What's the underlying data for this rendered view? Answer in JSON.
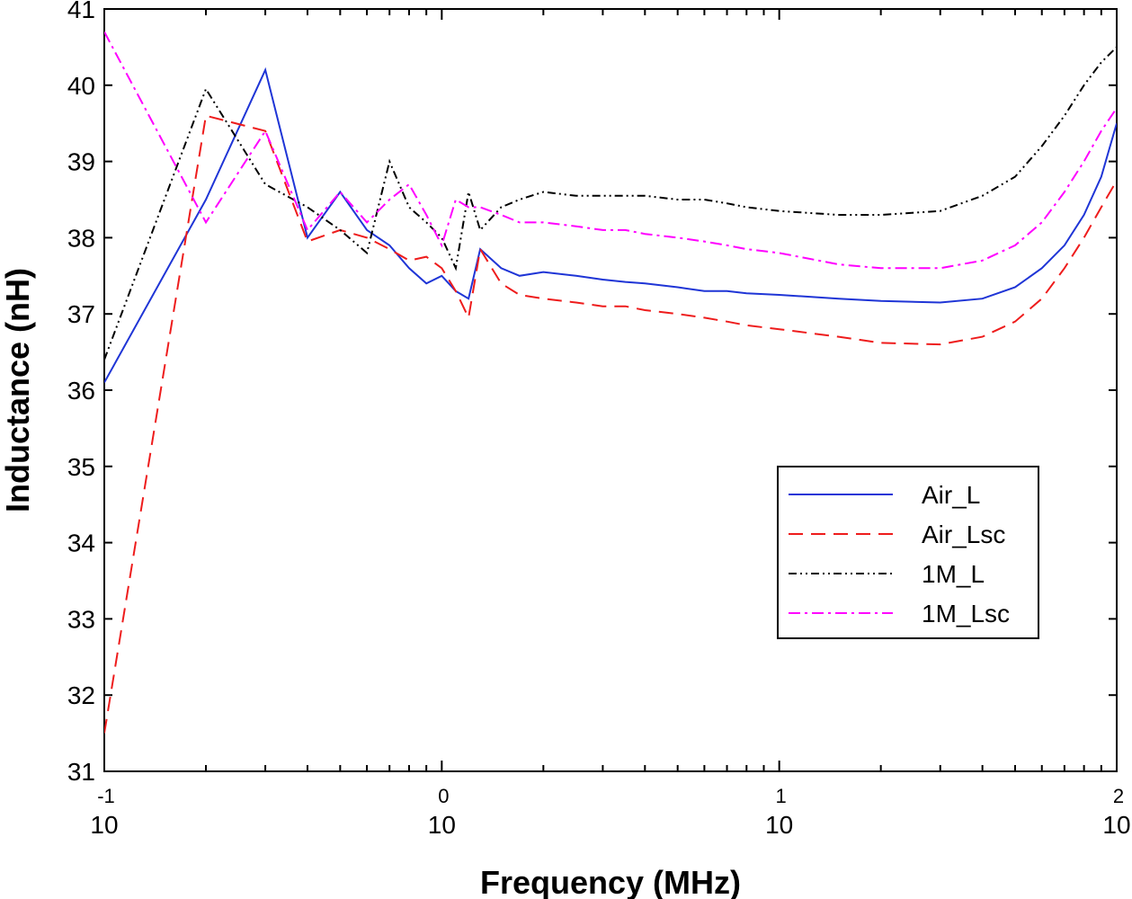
{
  "chart_data": {
    "type": "line",
    "title": "",
    "xlabel": "Frequency (MHz)",
    "ylabel": "Inductance (nH)",
    "xscale": "log",
    "xlim": [
      0.1,
      100
    ],
    "ylim": [
      31,
      41
    ],
    "x_ticks": [
      {
        "base": "10",
        "exp": "-1"
      },
      {
        "base": "10",
        "exp": "0"
      },
      {
        "base": "10",
        "exp": "1"
      },
      {
        "base": "10",
        "exp": "2"
      }
    ],
    "y_ticks": [
      "31",
      "32",
      "33",
      "34",
      "35",
      "36",
      "37",
      "38",
      "39",
      "40",
      "41"
    ],
    "legend_position": "right",
    "series": [
      {
        "name": "Air_L",
        "color": "#1f35d6",
        "dash": "solid",
        "x": [
          0.1,
          0.2,
          0.3,
          0.4,
          0.5,
          0.6,
          0.7,
          0.8,
          0.9,
          1,
          1.1,
          1.2,
          1.3,
          1.5,
          1.7,
          2,
          2.5,
          3,
          3.5,
          4,
          5,
          6,
          7,
          8,
          10,
          15,
          20,
          30,
          40,
          50,
          60,
          70,
          80,
          90,
          100
        ],
        "y": [
          36.1,
          38.5,
          40.2,
          38.0,
          38.6,
          38.1,
          37.9,
          37.6,
          37.4,
          37.5,
          37.3,
          37.2,
          37.85,
          37.6,
          37.5,
          37.55,
          37.5,
          37.45,
          37.42,
          37.4,
          37.35,
          37.3,
          37.3,
          37.27,
          37.25,
          37.2,
          37.17,
          37.15,
          37.2,
          37.35,
          37.6,
          37.9,
          38.3,
          38.8,
          39.5
        ]
      },
      {
        "name": "Air_Lsc",
        "color": "#ee1c1c",
        "dash": "long-dash",
        "x": [
          0.1,
          0.2,
          0.3,
          0.4,
          0.5,
          0.6,
          0.7,
          0.8,
          0.9,
          1,
          1.1,
          1.2,
          1.3,
          1.5,
          1.7,
          2,
          2.5,
          3,
          3.5,
          4,
          5,
          6,
          7,
          8,
          10,
          15,
          20,
          30,
          40,
          50,
          60,
          70,
          80,
          90,
          100
        ],
        "y": [
          31.5,
          39.6,
          39.4,
          37.95,
          38.1,
          38.0,
          37.85,
          37.7,
          37.75,
          37.6,
          37.3,
          36.95,
          37.85,
          37.4,
          37.25,
          37.2,
          37.15,
          37.1,
          37.1,
          37.05,
          37.0,
          36.95,
          36.9,
          36.85,
          36.8,
          36.7,
          36.62,
          36.6,
          36.7,
          36.9,
          37.2,
          37.6,
          38.0,
          38.4,
          38.75
        ]
      },
      {
        "name": "1M_L",
        "color": "#000000",
        "dash": "dash-dot-dot",
        "x": [
          0.1,
          0.2,
          0.3,
          0.4,
          0.5,
          0.6,
          0.7,
          0.8,
          0.9,
          1,
          1.1,
          1.2,
          1.3,
          1.5,
          1.7,
          2,
          2.5,
          3,
          3.5,
          4,
          5,
          6,
          7,
          8,
          10,
          15,
          20,
          30,
          40,
          50,
          60,
          70,
          80,
          90,
          100
        ],
        "y": [
          36.4,
          39.95,
          38.7,
          38.4,
          38.1,
          37.8,
          39.0,
          38.4,
          38.2,
          38.0,
          37.6,
          38.6,
          38.1,
          38.4,
          38.5,
          38.6,
          38.55,
          38.55,
          38.55,
          38.55,
          38.5,
          38.5,
          38.45,
          38.4,
          38.35,
          38.3,
          38.3,
          38.35,
          38.55,
          38.8,
          39.2,
          39.6,
          40.0,
          40.3,
          40.5
        ]
      },
      {
        "name": "1M_Lsc",
        "color": "#ff00ff",
        "dash": "dash-dot",
        "x": [
          0.1,
          0.2,
          0.3,
          0.4,
          0.5,
          0.6,
          0.7,
          0.8,
          0.9,
          1,
          1.1,
          1.2,
          1.3,
          1.5,
          1.7,
          2,
          2.5,
          3,
          3.5,
          4,
          5,
          6,
          7,
          8,
          10,
          15,
          20,
          30,
          40,
          50,
          60,
          70,
          80,
          90,
          100
        ],
        "y": [
          40.7,
          38.2,
          39.4,
          38.1,
          38.6,
          38.2,
          38.5,
          38.7,
          38.3,
          37.9,
          38.5,
          38.4,
          38.4,
          38.3,
          38.2,
          38.2,
          38.15,
          38.1,
          38.1,
          38.05,
          38.0,
          37.95,
          37.9,
          37.85,
          37.8,
          37.65,
          37.6,
          37.6,
          37.7,
          37.9,
          38.2,
          38.6,
          39.0,
          39.4,
          39.7
        ]
      }
    ]
  }
}
